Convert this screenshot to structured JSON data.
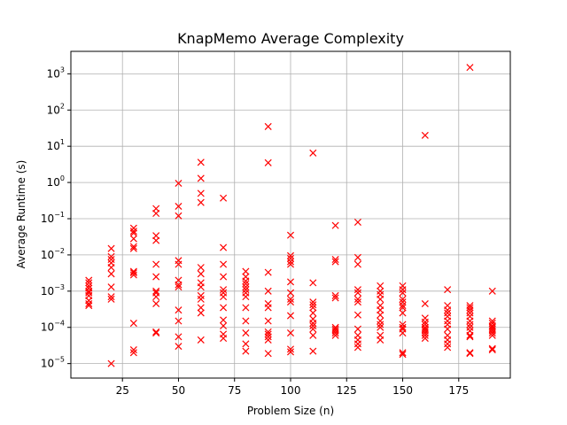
{
  "chart_data": {
    "type": "scatter",
    "title": "KnapMemo Average Complexity",
    "xlabel": "Problem Size (n)",
    "ylabel": "Average Runtime (s)",
    "xlim": [
      2,
      198
    ],
    "ylim_log10": [
      -5.4,
      3.62
    ],
    "y_scale": "log",
    "x_ticks": [
      25,
      50,
      75,
      100,
      125,
      150,
      175
    ],
    "y_ticks": [
      {
        "base": "10",
        "exp": "−5",
        "log10": -5
      },
      {
        "base": "10",
        "exp": "−4",
        "log10": -4
      },
      {
        "base": "10",
        "exp": "−3",
        "log10": -3
      },
      {
        "base": "10",
        "exp": "−2",
        "log10": -2
      },
      {
        "base": "10",
        "exp": "−1",
        "log10": -1
      },
      {
        "base": "10",
        "exp": "0",
        "log10": 0
      },
      {
        "base": "10",
        "exp": "1",
        "log10": 1
      },
      {
        "base": "10",
        "exp": "2",
        "log10": 2
      },
      {
        "base": "10",
        "exp": "3",
        "log10": 3
      }
    ],
    "grid": true,
    "marker": "x",
    "marker_color": "#ff0000",
    "points": [
      {
        "x": 10,
        "y": 0.002
      },
      {
        "x": 10,
        "y": 0.0017
      },
      {
        "x": 10,
        "y": 0.0014
      },
      {
        "x": 10,
        "y": 0.0012
      },
      {
        "x": 10,
        "y": 0.001
      },
      {
        "x": 10,
        "y": 0.0009
      },
      {
        "x": 10,
        "y": 0.00075
      },
      {
        "x": 10,
        "y": 0.00055
      },
      {
        "x": 10,
        "y": 0.00045
      },
      {
        "x": 10,
        "y": 0.0004
      },
      {
        "x": 20,
        "y": 0.015
      },
      {
        "x": 20,
        "y": 0.009
      },
      {
        "x": 20,
        "y": 0.0075
      },
      {
        "x": 20,
        "y": 0.006
      },
      {
        "x": 20,
        "y": 0.0045
      },
      {
        "x": 20,
        "y": 0.003
      },
      {
        "x": 20,
        "y": 0.0013
      },
      {
        "x": 20,
        "y": 0.0007
      },
      {
        "x": 20,
        "y": 0.0006
      },
      {
        "x": 20,
        "y": 1e-05
      },
      {
        "x": 30,
        "y": 0.055
      },
      {
        "x": 30,
        "y": 0.045
      },
      {
        "x": 30,
        "y": 0.04
      },
      {
        "x": 30,
        "y": 0.028
      },
      {
        "x": 30,
        "y": 0.017
      },
      {
        "x": 30,
        "y": 0.015
      },
      {
        "x": 30,
        "y": 0.0035
      },
      {
        "x": 30,
        "y": 0.0032
      },
      {
        "x": 30,
        "y": 0.0028
      },
      {
        "x": 30,
        "y": 0.00013
      },
      {
        "x": 30,
        "y": 2.4e-05
      },
      {
        "x": 30,
        "y": 2e-05
      },
      {
        "x": 40,
        "y": 0.19
      },
      {
        "x": 40,
        "y": 0.14
      },
      {
        "x": 40,
        "y": 0.034
      },
      {
        "x": 40,
        "y": 0.025
      },
      {
        "x": 40,
        "y": 0.0055
      },
      {
        "x": 40,
        "y": 0.0025
      },
      {
        "x": 40,
        "y": 0.001
      },
      {
        "x": 40,
        "y": 0.0009
      },
      {
        "x": 40,
        "y": 0.0007
      },
      {
        "x": 40,
        "y": 0.00045
      },
      {
        "x": 40,
        "y": 7.5e-05
      },
      {
        "x": 40,
        "y": 7e-05
      },
      {
        "x": 50,
        "y": 0.95
      },
      {
        "x": 50,
        "y": 0.22
      },
      {
        "x": 50,
        "y": 0.12
      },
      {
        "x": 50,
        "y": 0.007
      },
      {
        "x": 50,
        "y": 0.0055
      },
      {
        "x": 50,
        "y": 0.002
      },
      {
        "x": 50,
        "y": 0.0015
      },
      {
        "x": 50,
        "y": 0.0013
      },
      {
        "x": 50,
        "y": 0.0003
      },
      {
        "x": 50,
        "y": 0.00015
      },
      {
        "x": 50,
        "y": 5.5e-05
      },
      {
        "x": 50,
        "y": 3e-05
      },
      {
        "x": 60,
        "y": 3.6
      },
      {
        "x": 60,
        "y": 1.3
      },
      {
        "x": 60,
        "y": 0.5
      },
      {
        "x": 60,
        "y": 0.28
      },
      {
        "x": 60,
        "y": 0.0045
      },
      {
        "x": 60,
        "y": 0.003
      },
      {
        "x": 60,
        "y": 0.0017
      },
      {
        "x": 60,
        "y": 0.0013
      },
      {
        "x": 60,
        "y": 0.00075
      },
      {
        "x": 60,
        "y": 0.0006
      },
      {
        "x": 60,
        "y": 0.00035
      },
      {
        "x": 60,
        "y": 0.00025
      },
      {
        "x": 60,
        "y": 4.5e-05
      },
      {
        "x": 70,
        "y": 0.37
      },
      {
        "x": 70,
        "y": 0.016
      },
      {
        "x": 70,
        "y": 0.0055
      },
      {
        "x": 70,
        "y": 0.0025
      },
      {
        "x": 70,
        "y": 0.0011
      },
      {
        "x": 70,
        "y": 0.0009
      },
      {
        "x": 70,
        "y": 0.0007
      },
      {
        "x": 70,
        "y": 0.00035
      },
      {
        "x": 70,
        "y": 0.00016
      },
      {
        "x": 70,
        "y": 0.00011
      },
      {
        "x": 70,
        "y": 6.5e-05
      },
      {
        "x": 70,
        "y": 5e-05
      },
      {
        "x": 80,
        "y": 0.0035
      },
      {
        "x": 80,
        "y": 0.0025
      },
      {
        "x": 80,
        "y": 0.0019
      },
      {
        "x": 80,
        "y": 0.0016
      },
      {
        "x": 80,
        "y": 0.0013
      },
      {
        "x": 80,
        "y": 0.0011
      },
      {
        "x": 80,
        "y": 0.0009
      },
      {
        "x": 80,
        "y": 0.0007
      },
      {
        "x": 80,
        "y": 0.00035
      },
      {
        "x": 80,
        "y": 0.00015
      },
      {
        "x": 80,
        "y": 7e-05
      },
      {
        "x": 80,
        "y": 3.5e-05
      },
      {
        "x": 80,
        "y": 2.2e-05
      },
      {
        "x": 90,
        "y": 35
      },
      {
        "x": 90,
        "y": 3.5
      },
      {
        "x": 90,
        "y": 0.0033
      },
      {
        "x": 90,
        "y": 0.001
      },
      {
        "x": 90,
        "y": 0.00045
      },
      {
        "x": 90,
        "y": 0.00035
      },
      {
        "x": 90,
        "y": 0.00015
      },
      {
        "x": 90,
        "y": 7.5e-05
      },
      {
        "x": 90,
        "y": 6.5e-05
      },
      {
        "x": 90,
        "y": 5.5e-05
      },
      {
        "x": 90,
        "y": 4.5e-05
      },
      {
        "x": 90,
        "y": 1.9e-05
      },
      {
        "x": 100,
        "y": 0.035
      },
      {
        "x": 100,
        "y": 0.0095
      },
      {
        "x": 100,
        "y": 0.008
      },
      {
        "x": 100,
        "y": 0.0065
      },
      {
        "x": 100,
        "y": 0.0055
      },
      {
        "x": 100,
        "y": 0.0018
      },
      {
        "x": 100,
        "y": 0.0009
      },
      {
        "x": 100,
        "y": 0.0006
      },
      {
        "x": 100,
        "y": 0.0005
      },
      {
        "x": 100,
        "y": 0.00021
      },
      {
        "x": 100,
        "y": 7e-05
      },
      {
        "x": 100,
        "y": 2.5e-05
      },
      {
        "x": 100,
        "y": 2.1e-05
      },
      {
        "x": 110,
        "y": 6.5
      },
      {
        "x": 110,
        "y": 0.0017
      },
      {
        "x": 110,
        "y": 0.0005
      },
      {
        "x": 110,
        "y": 0.00042
      },
      {
        "x": 110,
        "y": 0.00035
      },
      {
        "x": 110,
        "y": 0.00025
      },
      {
        "x": 110,
        "y": 0.00017
      },
      {
        "x": 110,
        "y": 0.00013
      },
      {
        "x": 110,
        "y": 0.00011
      },
      {
        "x": 110,
        "y": 9e-05
      },
      {
        "x": 110,
        "y": 6e-05
      },
      {
        "x": 110,
        "y": 2.2e-05
      },
      {
        "x": 120,
        "y": 0.065
      },
      {
        "x": 120,
        "y": 0.0075
      },
      {
        "x": 120,
        "y": 0.0065
      },
      {
        "x": 120,
        "y": 0.00075
      },
      {
        "x": 120,
        "y": 0.00065
      },
      {
        "x": 120,
        "y": 0.0001
      },
      {
        "x": 120,
        "y": 9e-05
      },
      {
        "x": 120,
        "y": 8e-05
      },
      {
        "x": 120,
        "y": 7e-05
      },
      {
        "x": 120,
        "y": 6e-05
      },
      {
        "x": 130,
        "y": 0.08
      },
      {
        "x": 130,
        "y": 0.0085
      },
      {
        "x": 130,
        "y": 0.0055
      },
      {
        "x": 130,
        "y": 0.0011
      },
      {
        "x": 130,
        "y": 0.0009
      },
      {
        "x": 130,
        "y": 0.0006
      },
      {
        "x": 130,
        "y": 0.0005
      },
      {
        "x": 130,
        "y": 0.00022
      },
      {
        "x": 130,
        "y": 9e-05
      },
      {
        "x": 130,
        "y": 6e-05
      },
      {
        "x": 130,
        "y": 4.5e-05
      },
      {
        "x": 130,
        "y": 3.5e-05
      },
      {
        "x": 130,
        "y": 2.8e-05
      },
      {
        "x": 140,
        "y": 0.0014
      },
      {
        "x": 140,
        "y": 0.001
      },
      {
        "x": 140,
        "y": 0.0008
      },
      {
        "x": 140,
        "y": 0.0006
      },
      {
        "x": 140,
        "y": 0.0004
      },
      {
        "x": 140,
        "y": 0.0003
      },
      {
        "x": 140,
        "y": 0.00022
      },
      {
        "x": 140,
        "y": 0.00015
      },
      {
        "x": 140,
        "y": 0.00012
      },
      {
        "x": 140,
        "y": 0.0001
      },
      {
        "x": 140,
        "y": 6e-05
      },
      {
        "x": 140,
        "y": 4.5e-05
      },
      {
        "x": 150,
        "y": 0.0014
      },
      {
        "x": 150,
        "y": 0.0011
      },
      {
        "x": 150,
        "y": 0.0009
      },
      {
        "x": 150,
        "y": 0.0006
      },
      {
        "x": 150,
        "y": 0.0005
      },
      {
        "x": 150,
        "y": 0.0004
      },
      {
        "x": 150,
        "y": 0.00035
      },
      {
        "x": 150,
        "y": 0.00025
      },
      {
        "x": 150,
        "y": 0.00012
      },
      {
        "x": 150,
        "y": 0.0001
      },
      {
        "x": 150,
        "y": 9e-05
      },
      {
        "x": 150,
        "y": 7e-05
      },
      {
        "x": 150,
        "y": 2e-05
      },
      {
        "x": 150,
        "y": 1.8e-05
      },
      {
        "x": 160,
        "y": 20
      },
      {
        "x": 160,
        "y": 0.00045
      },
      {
        "x": 160,
        "y": 0.00018
      },
      {
        "x": 160,
        "y": 0.00014
      },
      {
        "x": 160,
        "y": 0.00012
      },
      {
        "x": 160,
        "y": 0.0001
      },
      {
        "x": 160,
        "y": 9e-05
      },
      {
        "x": 160,
        "y": 8e-05
      },
      {
        "x": 160,
        "y": 7e-05
      },
      {
        "x": 160,
        "y": 6e-05
      },
      {
        "x": 160,
        "y": 5e-05
      },
      {
        "x": 170,
        "y": 0.0011
      },
      {
        "x": 170,
        "y": 0.0004
      },
      {
        "x": 170,
        "y": 0.0003
      },
      {
        "x": 170,
        "y": 0.00025
      },
      {
        "x": 170,
        "y": 0.0002
      },
      {
        "x": 170,
        "y": 0.00015
      },
      {
        "x": 170,
        "y": 0.00012
      },
      {
        "x": 170,
        "y": 9e-05
      },
      {
        "x": 170,
        "y": 6e-05
      },
      {
        "x": 170,
        "y": 4.5e-05
      },
      {
        "x": 170,
        "y": 3.5e-05
      },
      {
        "x": 170,
        "y": 2.8e-05
      },
      {
        "x": 180,
        "y": 1500
      },
      {
        "x": 180,
        "y": 0.0004
      },
      {
        "x": 180,
        "y": 0.00035
      },
      {
        "x": 180,
        "y": 0.0003
      },
      {
        "x": 180,
        "y": 0.00025
      },
      {
        "x": 180,
        "y": 0.0002
      },
      {
        "x": 180,
        "y": 0.00015
      },
      {
        "x": 180,
        "y": 0.00012
      },
      {
        "x": 180,
        "y": 0.0001
      },
      {
        "x": 180,
        "y": 8e-05
      },
      {
        "x": 180,
        "y": 6e-05
      },
      {
        "x": 180,
        "y": 5.5e-05
      },
      {
        "x": 180,
        "y": 2e-05
      },
      {
        "x": 180,
        "y": 1.9e-05
      },
      {
        "x": 190,
        "y": 0.001
      },
      {
        "x": 190,
        "y": 0.00015
      },
      {
        "x": 190,
        "y": 0.00013
      },
      {
        "x": 190,
        "y": 0.00011
      },
      {
        "x": 190,
        "y": 0.0001
      },
      {
        "x": 190,
        "y": 9e-05
      },
      {
        "x": 190,
        "y": 8e-05
      },
      {
        "x": 190,
        "y": 7e-05
      },
      {
        "x": 190,
        "y": 6e-05
      },
      {
        "x": 190,
        "y": 2.6e-05
      },
      {
        "x": 190,
        "y": 2.4e-05
      }
    ]
  }
}
